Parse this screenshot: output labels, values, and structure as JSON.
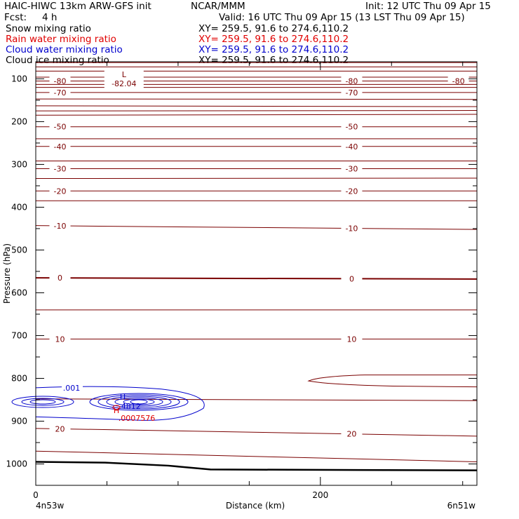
{
  "header": {
    "model": "HAIC-HIWC 13km ARW-GFS init",
    "center": "NCAR/MMM",
    "init": "Init: 12 UTC Thu 09 Apr 15",
    "fcst_label": "Fcst:",
    "fcst_value": "4 h",
    "valid": "Valid: 16 UTC Thu 09 Apr 15 (13 LST Thu 09 Apr 15)"
  },
  "fields": [
    {
      "name": "Snow mixing ratio",
      "xy": "XY= 259.5, 91.6 to 274.6,110.2",
      "color": "#000000"
    },
    {
      "name": "Rain water mixing ratio",
      "xy": "XY= 259.5, 91.6 to 274.6,110.2",
      "color": "#e00000"
    },
    {
      "name": "Cloud water mixing ratio",
      "xy": "XY= 259.5, 91.6 to 274.6,110.2",
      "color": "#0000cc"
    },
    {
      "name": "Cloud ice mixing ratio",
      "xy": "XY= 259.5, 91.6 to 274.6,110.2",
      "color": "#000000"
    }
  ],
  "chart_data": {
    "type": "contour",
    "xlabel": "Distance (km)",
    "ylabel": "Pressure (hPa)",
    "xlim": [
      0,
      310
    ],
    "ylim": [
      1050,
      60
    ],
    "x_ticks": [
      0,
      200
    ],
    "y_ticks": [
      100,
      200,
      300,
      400,
      500,
      600,
      700,
      800,
      900,
      1000
    ],
    "x_endpoint_labels": {
      "left": "4n53w",
      "right": "6n51w"
    },
    "temperature_color": "#7a0000",
    "temperature_contours": [
      {
        "p0": 62,
        "p1": 62
      },
      {
        "p0": 72,
        "p1": 72
      },
      {
        "p0": 82,
        "p1": 82
      },
      {
        "p0": 96,
        "p1": 96
      },
      {
        "p0": 105,
        "p1": 105,
        "label": "-80"
      },
      {
        "p0": 113,
        "p1": 113
      },
      {
        "p0": 120,
        "p1": 120
      },
      {
        "p0": 132,
        "p1": 132,
        "label": "-70"
      },
      {
        "p0": 147,
        "p1": 148
      },
      {
        "p0": 163,
        "p1": 165
      },
      {
        "p0": 175,
        "p1": 174
      },
      {
        "p0": 185,
        "p1": 183
      },
      {
        "p0": 212,
        "p1": 212,
        "label": "-50"
      },
      {
        "p0": 240,
        "p1": 240
      },
      {
        "p0": 258,
        "p1": 258,
        "label": "-40"
      },
      {
        "p0": 292,
        "p1": 292
      },
      {
        "p0": 310,
        "p1": 310,
        "label": "-30"
      },
      {
        "p0": 333,
        "p1": 332
      },
      {
        "p0": 362,
        "p1": 362,
        "label": "-20"
      },
      {
        "p0": 385,
        "p1": 385
      },
      {
        "p0": 443,
        "p1": 452,
        "label": "-10"
      },
      {
        "p0": 565,
        "p1": 568,
        "label": "0"
      },
      {
        "p0": 640,
        "p1": 640
      },
      {
        "p0": 708,
        "p1": 708,
        "label": "10"
      },
      {
        "p0": 848,
        "p1": 852
      },
      {
        "p0": 917,
        "p1": 935,
        "label": "20"
      },
      {
        "p0": 970,
        "p1": 995
      }
    ],
    "temperature_labels": [
      "-80",
      "-70",
      "-50",
      "-40",
      "-30",
      "-20",
      "-10",
      "0",
      "10",
      "20"
    ],
    "min_label": "L",
    "min_value": "-82.04",
    "cloud_water": {
      "color": "#0000cc",
      "label": ".001",
      "max_marker": "H",
      "max_value": ".4812"
    },
    "rain_water": {
      "color": "#e00000",
      "max_marker": "H",
      "max_value": ".0007576"
    },
    "ground_pressure_hpa": [
      {
        "x": 0,
        "p": 995
      },
      {
        "x": 310,
        "p": 1015
      }
    ]
  }
}
